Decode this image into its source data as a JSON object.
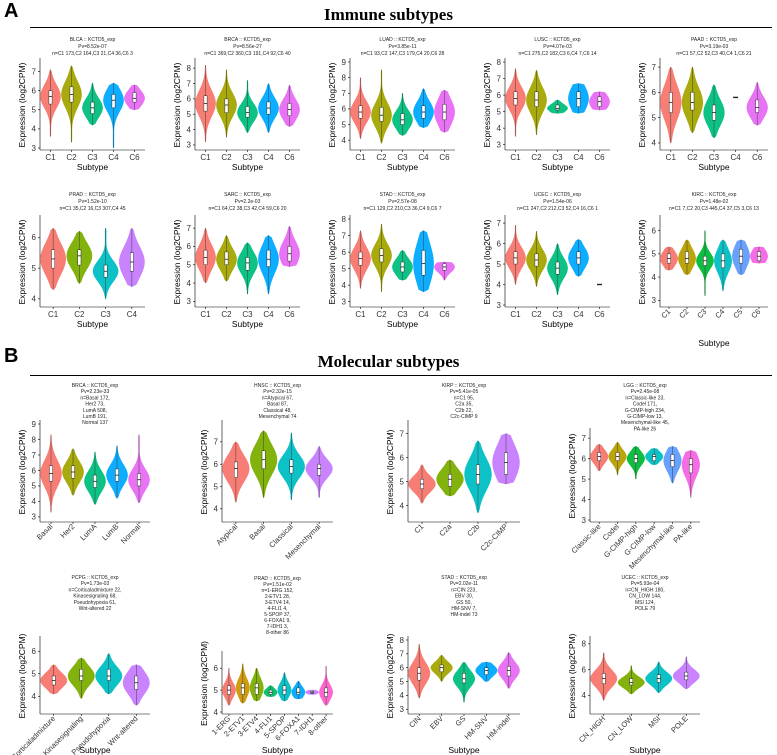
{
  "sections": {
    "a": {
      "letter": "A",
      "title": "Immune subtypes"
    },
    "b": {
      "letter": "B",
      "title": "Molecular subtypes"
    }
  },
  "palette": [
    "#F8766D",
    "#9BA400",
    "#22B59B",
    "#1C9AE0",
    "#D96BE8",
    "#8A5EE8",
    "#E7A93B",
    "#E76BB9"
  ],
  "chart_data": [
    {
      "type": "violin",
      "title": [
        "BLCA :: KCTD5_exp",
        "Pv=8.52e-07",
        "n=C1 173,C2 164,C3 21,C4 36,C6 3"
      ],
      "xlabel": "Subtype",
      "ylabel": "Expression (log2CPM)",
      "ylim": [
        3,
        7.5
      ],
      "yticks": [
        3,
        4,
        5,
        6,
        7
      ],
      "categories": [
        "C1",
        "C2",
        "C3",
        "C4",
        "C6"
      ],
      "colors": [
        "#F8766D",
        "#A3A500",
        "#00BF7D",
        "#00A9FF",
        "#E76BF3"
      ],
      "median": [
        5.7,
        5.8,
        5.1,
        5.5,
        5.6
      ],
      "q1": [
        5.3,
        5.4,
        4.8,
        5.1,
        5.4
      ],
      "q3": [
        6.0,
        6.2,
        5.4,
        5.8,
        5.9
      ],
      "min": [
        3.6,
        3.3,
        4.2,
        3.0,
        5.0
      ],
      "max": [
        7.1,
        7.3,
        6.4,
        6.4,
        6.3
      ]
    },
    {
      "type": "violin",
      "title": [
        "BRCA :: KCTD5_exp",
        "Pv=8.56e-27",
        "n=C1 369,C2 360,C3 191,C4 92,C6 40"
      ],
      "xlabel": "Subtype",
      "ylabel": "Expression (log2CPM)",
      "ylim": [
        2.8,
        8.4
      ],
      "yticks": [
        3,
        4,
        5,
        6,
        7,
        8
      ],
      "categories": [
        "C1",
        "C2",
        "C3",
        "C4",
        "C6"
      ],
      "colors": [
        "#F8766D",
        "#A3A500",
        "#00BF7D",
        "#00A9FF",
        "#E76BF3"
      ],
      "median": [
        5.7,
        5.6,
        5.1,
        5.4,
        5.3
      ],
      "q1": [
        5.2,
        5.1,
        4.8,
        5.0,
        4.9
      ],
      "q3": [
        6.2,
        6.0,
        5.5,
        5.8,
        5.7
      ],
      "min": [
        3.2,
        3.5,
        3.8,
        3.8,
        4.2
      ],
      "max": [
        8.2,
        7.9,
        7.2,
        7.0,
        6.9
      ]
    },
    {
      "type": "violin",
      "title": [
        "LUAD :: KCTD5_exp",
        "Pv=3.85e-11",
        "n=C1 93,C2 147,C3 179,C4 20,C6 28"
      ],
      "xlabel": "Subtype",
      "ylabel": "Expression (log2CPM)",
      "ylim": [
        3.5,
        9
      ],
      "yticks": [
        4,
        5,
        6,
        7,
        8,
        9
      ],
      "categories": [
        "C1",
        "C2",
        "C3",
        "C4",
        "C6"
      ],
      "colors": [
        "#F8766D",
        "#A3A500",
        "#00BF7D",
        "#00A9FF",
        "#E76BF3"
      ],
      "median": [
        5.8,
        5.6,
        5.3,
        5.8,
        5.8
      ],
      "q1": [
        5.4,
        5.2,
        5.0,
        5.4,
        5.3
      ],
      "q3": [
        6.2,
        6.1,
        5.7,
        6.2,
        6.3
      ],
      "min": [
        4.1,
        3.8,
        4.3,
        4.8,
        4.5
      ],
      "max": [
        8.0,
        8.5,
        7.0,
        7.3,
        7.2
      ]
    },
    {
      "type": "violin",
      "title": [
        "LUSC :: KCTD5_exp",
        "Pv=4.07e-03",
        "n=C1 275,C2 182,C3 6,C4 7,C6 14"
      ],
      "xlabel": "Subtype",
      "ylabel": "Expression (log2CPM)",
      "ylim": [
        2.8,
        8
      ],
      "yticks": [
        3,
        4,
        5,
        6,
        7,
        8
      ],
      "categories": [
        "C1",
        "C2",
        "C3",
        "C4",
        "C6"
      ],
      "colors": [
        "#F8766D",
        "#A3A500",
        "#00BF7D",
        "#00A9FF",
        "#E76BF3"
      ],
      "median": [
        5.8,
        5.7,
        5.2,
        5.8,
        5.6
      ],
      "q1": [
        5.4,
        5.3,
        5.1,
        5.3,
        5.3
      ],
      "q3": [
        6.2,
        6.2,
        5.4,
        6.2,
        5.9
      ],
      "min": [
        3.5,
        3.6,
        4.9,
        4.9,
        5.1
      ],
      "max": [
        7.6,
        7.5,
        5.7,
        6.7,
        6.2
      ]
    },
    {
      "type": "violin",
      "title": [
        "PAAD :: KCTD5_exp",
        "Pv=3.19e-03",
        "n=C1 57,C2 52,C3 40,C4 1,C6 21"
      ],
      "xlabel": "Subtype",
      "ylabel": "Expression (log2CPM)",
      "ylim": [
        3.8,
        7.2
      ],
      "yticks": [
        4,
        5,
        6,
        7
      ],
      "categories": [
        "C1",
        "C2",
        "C3",
        "C4",
        "C6"
      ],
      "colors": [
        "#F8766D",
        "#A3A500",
        "#00BF7D",
        "#00A9FF",
        "#E76BF3"
      ],
      "median": [
        5.6,
        5.6,
        5.2,
        5.8,
        5.4
      ],
      "q1": [
        5.2,
        5.3,
        4.9,
        5.8,
        5.2
      ],
      "q3": [
        6.0,
        6.0,
        5.5,
        5.8,
        5.7
      ],
      "min": [
        4.0,
        4.4,
        4.2,
        5.8,
        4.7
      ],
      "max": [
        7.0,
        7.0,
        6.3,
        5.8,
        6.4
      ]
    },
    {
      "type": "violin",
      "title": [
        "PRAD :: KCTD5_exp",
        "Pv=1.52e-10",
        "n=C1 35,C2 16,C3 307,C4 45"
      ],
      "xlabel": "Subtype",
      "ylabel": "Expression (log2CPM)",
      "ylim": [
        3.8,
        6.6
      ],
      "yticks": [
        4,
        5,
        6
      ],
      "categories": [
        "C1",
        "C2",
        "C3",
        "C4"
      ],
      "colors": [
        "#F8766D",
        "#7CAE00",
        "#00BFC4",
        "#C77CFF"
      ],
      "median": [
        5.3,
        5.4,
        4.9,
        5.2
      ],
      "q1": [
        5.0,
        5.1,
        4.7,
        4.9
      ],
      "q3": [
        5.6,
        5.6,
        5.1,
        5.5
      ],
      "min": [
        4.3,
        4.5,
        4.0,
        4.4
      ],
      "max": [
        6.3,
        6.2,
        6.3,
        6.3
      ]
    },
    {
      "type": "violin",
      "title": [
        "SARC :: KCTD5_exp",
        "Pv=2.2e-03",
        "n=C1 64,C2 38,C3 42,C4 59,C6 20"
      ],
      "xlabel": "Subtype",
      "ylabel": "Expression (log2CPM)",
      "ylim": [
        2.8,
        7.5
      ],
      "yticks": [
        3,
        4,
        5,
        6,
        7
      ],
      "categories": [
        "C1",
        "C2",
        "C3",
        "C4",
        "C6"
      ],
      "colors": [
        "#F8766D",
        "#A3A500",
        "#00BF7D",
        "#00A9FF",
        "#E76BF3"
      ],
      "median": [
        5.4,
        5.3,
        5.1,
        5.3,
        5.6
      ],
      "q1": [
        5.0,
        5.0,
        4.7,
        4.9,
        5.2
      ],
      "q3": [
        5.8,
        5.7,
        5.4,
        5.8,
        6.0
      ],
      "min": [
        4.0,
        4.1,
        3.4,
        3.4,
        4.9
      ],
      "max": [
        7.0,
        6.6,
        6.2,
        6.6,
        7.1
      ]
    },
    {
      "type": "violin",
      "title": [
        "STAD :: KCTD5_exp",
        "Pv=2.57e-08",
        "n=C1 129,C2 210,C3 36,C4 9,C6 7"
      ],
      "xlabel": "Subtype",
      "ylabel": "Expression (log2CPM)",
      "ylim": [
        2.8,
        8
      ],
      "yticks": [
        3,
        4,
        5,
        6,
        7,
        8
      ],
      "categories": [
        "C1",
        "C2",
        "C3",
        "C4",
        "C6"
      ],
      "colors": [
        "#F8766D",
        "#A3A500",
        "#00BF7D",
        "#00A9FF",
        "#E76BF3"
      ],
      "median": [
        5.6,
        5.8,
        5.1,
        5.3,
        5.1
      ],
      "q1": [
        5.2,
        5.4,
        4.8,
        4.6,
        4.9
      ],
      "q3": [
        6.0,
        6.2,
        5.4,
        6.1,
        5.3
      ],
      "min": [
        3.8,
        3.6,
        4.3,
        3.6,
        4.3
      ],
      "max": [
        7.3,
        7.7,
        6.1,
        7.3,
        5.4
      ]
    },
    {
      "type": "violin",
      "title": [
        "UCEC :: KCTD5_exp",
        "Pv=1.54e-06",
        "n=C1 247,C2 212,C3 52,C4 16,C6 1"
      ],
      "xlabel": "Subtype",
      "ylabel": "Expression (log2CPM)",
      "ylim": [
        3,
        7.2
      ],
      "yticks": [
        3,
        4,
        5,
        6,
        7
      ],
      "categories": [
        "C1",
        "C2",
        "C3",
        "C4",
        "C6"
      ],
      "colors": [
        "#F8766D",
        "#A3A500",
        "#00BF7D",
        "#00A9FF",
        "#E76BF3"
      ],
      "median": [
        5.3,
        5.2,
        4.8,
        5.3,
        4.0
      ],
      "q1": [
        5.0,
        4.9,
        4.5,
        5.0,
        4.0
      ],
      "q3": [
        5.6,
        5.5,
        5.1,
        5.6,
        4.0
      ],
      "min": [
        4.0,
        3.9,
        3.5,
        4.4,
        4.0
      ],
      "max": [
        6.9,
        6.6,
        6.0,
        6.2,
        4.0
      ]
    },
    {
      "type": "violin",
      "title": [
        "KIRC :: KCTD5_exp",
        "Pv=1.48e-02",
        "n=C1 7,C2 20,C3 445,C4 37,C5 3,C6 13"
      ],
      "xlabel": "Subtype",
      "ylabel": "Expression (log2CPM)",
      "ylim": [
        2.8,
        6.5
      ],
      "yticks": [
        3,
        4,
        5,
        6
      ],
      "categories": [
        "C1",
        "C2",
        "C3",
        "C4",
        "C5",
        "C6"
      ],
      "colors": [
        "#F8766D",
        "#B79F00",
        "#00BA38",
        "#00BFC4",
        "#619CFF",
        "#F564E3"
      ],
      "median": [
        4.8,
        4.8,
        4.7,
        4.7,
        4.9,
        4.9
      ],
      "q1": [
        4.6,
        4.6,
        4.5,
        4.4,
        4.6,
        4.7
      ],
      "q3": [
        5.0,
        5.1,
        4.9,
        5.0,
        5.2,
        5.1
      ],
      "min": [
        4.3,
        4.1,
        3.2,
        3.4,
        4.1,
        4.6
      ],
      "max": [
        5.3,
        5.6,
        6.0,
        5.6,
        5.6,
        5.3
      ]
    },
    {
      "type": "violin",
      "title": [
        "BRCA :: KCTD5_exp",
        "Pv=2.23e-33",
        "n=Basal 172,",
        "Her2 73,",
        "LumA 508,",
        "LumB 191,",
        "Normal 137"
      ],
      "xlabel": "",
      "ylabel": "Expression (log2CPM)",
      "ylim": [
        2.8,
        9
      ],
      "yticks": [
        3,
        4,
        5,
        6,
        7,
        8,
        9
      ],
      "categories": [
        "Basal",
        "Her2",
        "LumA",
        "LumB",
        "Normal"
      ],
      "colors": [
        "#F8766D",
        "#A3A500",
        "#00BF7D",
        "#00A9FF",
        "#E76BF3"
      ],
      "median": [
        5.8,
        5.9,
        5.3,
        5.7,
        5.4
      ],
      "q1": [
        5.3,
        5.5,
        4.9,
        5.3,
        5.0
      ],
      "q3": [
        6.3,
        6.3,
        5.7,
        6.1,
        5.8
      ],
      "min": [
        3.3,
        4.4,
        3.8,
        4.2,
        3.9
      ],
      "max": [
        8.3,
        7.4,
        7.2,
        7.6,
        8.3
      ]
    },
    {
      "type": "violin",
      "title": [
        "HNSC :: KCTD5_exp",
        "Pv=2.32e-15",
        "n=Atypical 67,",
        "Basal 87,",
        "Classical 48,",
        "Mesenchymal 74"
      ],
      "xlabel": "",
      "ylabel": "Expression (log2CPM)",
      "ylim": [
        3.5,
        7.8
      ],
      "yticks": [
        4,
        5,
        6,
        7
      ],
      "categories": [
        "Atypical",
        "Basal",
        "Classical",
        "Mesenchymal"
      ],
      "colors": [
        "#F8766D",
        "#7CAE00",
        "#00BFC4",
        "#C77CFF"
      ],
      "median": [
        5.8,
        6.2,
        5.9,
        5.8
      ],
      "q1": [
        5.4,
        5.8,
        5.6,
        5.5
      ],
      "q3": [
        6.1,
        6.6,
        6.2,
        6.0
      ],
      "min": [
        4.3,
        4.5,
        4.4,
        4.5
      ],
      "max": [
        7.0,
        7.5,
        7.4,
        6.8
      ]
    },
    {
      "type": "violin",
      "title": [
        "KIRP :: KCTD5_exp",
        "Pv=5.41e-05",
        "n=C1 95,",
        "C2a 35,",
        "C2b 22,",
        "C2c-CIMP 9"
      ],
      "xlabel": "",
      "ylabel": "Expression (log2CPM)",
      "ylim": [
        3.4,
        7.4
      ],
      "yticks": [
        4,
        5,
        6,
        7
      ],
      "categories": [
        "C1",
        "C2a",
        "C2b",
        "C2c-CIMP"
      ],
      "colors": [
        "#F8766D",
        "#7CAE00",
        "#00BFC4",
        "#C77CFF"
      ],
      "median": [
        4.9,
        5.1,
        5.3,
        5.8
      ],
      "q1": [
        4.7,
        4.8,
        4.9,
        5.3
      ],
      "q3": [
        5.1,
        5.3,
        5.7,
        6.2
      ],
      "min": [
        4.1,
        4.4,
        3.7,
        4.9
      ],
      "max": [
        5.7,
        5.9,
        6.7,
        7.0
      ]
    },
    {
      "type": "violin",
      "title": [
        "LGG :: KCTD5_exp",
        "Pv=2.45e-08",
        "n=Classic-like 23,",
        "Codel 171,",
        "G-CIMP-high 234,",
        "G-CIMP-low 13,",
        "Mesenchymal-like 45,",
        "PA-like 26"
      ],
      "xlabel": "",
      "ylabel": "Expression (log2CPM)",
      "ylim": [
        3,
        7.3
      ],
      "yticks": [
        3,
        4,
        5,
        6,
        7
      ],
      "categories": [
        "Classic-like",
        "Codel",
        "G-CIMP-high",
        "G-CIMP-low",
        "Mesenchymal-like",
        "PA-like"
      ],
      "colors": [
        "#F8766D",
        "#B79F00",
        "#00BA38",
        "#00BFC4",
        "#619CFF",
        "#F564E3"
      ],
      "median": [
        6.1,
        6.1,
        6.0,
        6.1,
        5.9,
        5.7
      ],
      "q1": [
        5.9,
        5.9,
        5.8,
        5.9,
        5.6,
        5.3
      ],
      "q3": [
        6.3,
        6.3,
        6.2,
        6.2,
        6.2,
        6.0
      ],
      "min": [
        5.4,
        5.2,
        5.0,
        5.7,
        4.8,
        4.1
      ],
      "max": [
        6.7,
        6.8,
        6.6,
        6.5,
        6.6,
        6.4
      ]
    },
    {
      "type": "violin",
      "title": [
        "PCPG :: KCTD5_exp",
        "Pv=1.73e-03",
        "n=Corticaladmixture 22,",
        "Kinasesignaling 68,",
        "Pseudohypoxia 61,",
        "Wnt-altered 22"
      ],
      "xlabel": "Subtype",
      "ylabel": "Expression (log2CPM)",
      "ylim": [
        3.3,
        6.5
      ],
      "yticks": [
        4,
        5,
        6
      ],
      "categories": [
        "Corticaladmixture",
        "Kinasesignaling",
        "Pseudohypoxia",
        "Wnt-altered"
      ],
      "colors": [
        "#F8766D",
        "#7CAE00",
        "#00BFC4",
        "#C77CFF"
      ],
      "median": [
        4.7,
        4.9,
        4.9,
        4.6
      ],
      "q1": [
        4.5,
        4.7,
        4.7,
        4.3
      ],
      "q3": [
        4.9,
        5.2,
        5.2,
        4.9
      ],
      "min": [
        4.1,
        3.9,
        4.1,
        3.6
      ],
      "max": [
        5.4,
        5.7,
        5.9,
        5.4
      ]
    },
    {
      "type": "violin",
      "title": [
        "PRAD :: KCTD5_exp",
        "Pv=1.51e-02",
        "n=1-ERG 152,",
        "2-ETV1 28,",
        "3-ETV4 14,",
        "4-FLI1 4,",
        "5-SPOP 37,",
        "6-FOXA1 9,",
        "7-IDH1 3,",
        "8-other 86"
      ],
      "xlabel": "Subtype",
      "ylabel": "Expression (log2CPM)",
      "ylim": [
        4,
        6.6
      ],
      "yticks": [
        4,
        5,
        6
      ],
      "categories": [
        "1-ERG",
        "2-ETV1",
        "3-ETV4",
        "4-FLI1",
        "5-SPOP",
        "6-FOXA1",
        "7-IDH1",
        "8-other"
      ],
      "colors": [
        "#F8766D",
        "#CD9600",
        "#7CAE00",
        "#00BE67",
        "#00BFC4",
        "#00A9FF",
        "#C77CFF",
        "#FF61CC"
      ],
      "median": [
        5.0,
        5.1,
        5.1,
        4.9,
        5.0,
        4.9,
        4.9,
        4.9
      ],
      "q1": [
        4.8,
        4.8,
        4.8,
        4.8,
        4.8,
        4.8,
        4.85,
        4.7
      ],
      "q3": [
        5.2,
        5.3,
        5.3,
        5.0,
        5.2,
        5.1,
        4.95,
        5.1
      ],
      "min": [
        4.3,
        4.4,
        4.5,
        4.7,
        4.5,
        4.6,
        4.8,
        4.3
      ],
      "max": [
        6.0,
        6.2,
        6.0,
        5.2,
        5.8,
        5.4,
        5.0,
        6.1
      ]
    },
    {
      "type": "violin",
      "title": [
        "STAD :: KCTD5_exp",
        "Pv=2.02e-11",
        "n=CIN 223,",
        "EBV 30,",
        "GS 50,",
        "HM-SNV 7,",
        "HM-indel 73"
      ],
      "xlabel": "Subtype",
      "ylabel": "Expression (log2CPM)",
      "ylim": [
        2.8,
        8
      ],
      "yticks": [
        3,
        4,
        5,
        6,
        7,
        8
      ],
      "categories": [
        "CIN",
        "EBV",
        "GS",
        "HM-SNV",
        "HM-indel"
      ],
      "colors": [
        "#F8766D",
        "#A3A500",
        "#00BF7D",
        "#00A9FF",
        "#E76BF3"
      ],
      "median": [
        5.6,
        6.0,
        5.2,
        5.8,
        5.8
      ],
      "q1": [
        5.1,
        5.7,
        4.9,
        5.5,
        5.4
      ],
      "q3": [
        6.0,
        6.2,
        5.6,
        6.0,
        6.1
      ],
      "min": [
        3.8,
        5.0,
        3.5,
        5.0,
        4.5
      ],
      "max": [
        7.7,
        6.9,
        6.4,
        6.4,
        7.1
      ]
    },
    {
      "type": "violin",
      "title": [
        "UCEC :: KCTD5_exp",
        "Pv=5.93e-04",
        "n=CN_HIGH 180,",
        "CN_LOW 144,",
        "MSI 124,",
        "POLE 79"
      ],
      "xlabel": "Subtype",
      "ylabel": "Expression (log2CPM)",
      "ylim": [
        2.7,
        8.3
      ],
      "yticks": [
        4,
        6,
        8
      ],
      "categories": [
        "CN_HIGH",
        "CN_LOW",
        "MSI",
        "POLE"
      ],
      "colors": [
        "#F8766D",
        "#7CAE00",
        "#00BFC4",
        "#C77CFF"
      ],
      "median": [
        5.3,
        5.0,
        5.3,
        5.5
      ],
      "q1": [
        4.9,
        4.8,
        5.0,
        5.2
      ],
      "q3": [
        5.7,
        5.3,
        5.6,
        5.8
      ],
      "min": [
        3.6,
        4.1,
        4.2,
        4.5
      ],
      "max": [
        7.3,
        6.3,
        6.6,
        7.0
      ]
    }
  ]
}
